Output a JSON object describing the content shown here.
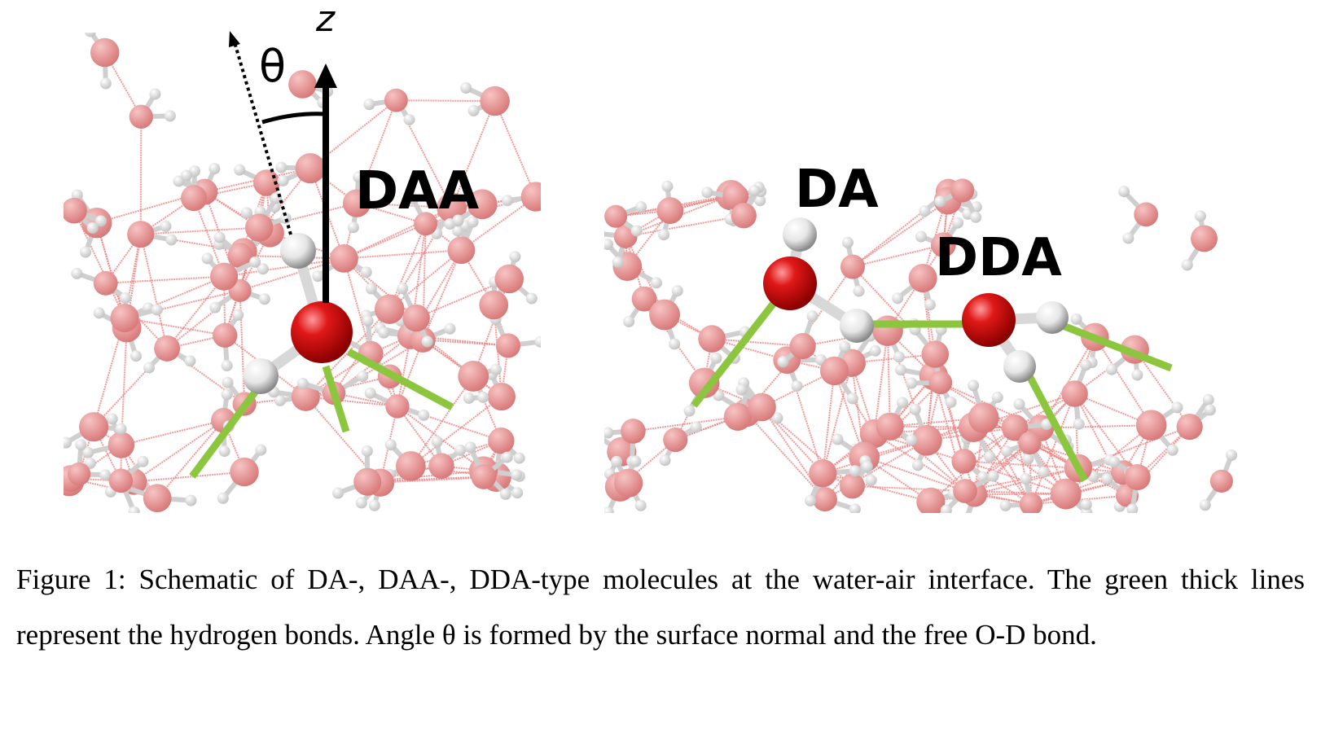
{
  "figure": {
    "axis_label": "z",
    "angle_label": "θ",
    "left_panel": {
      "label": "DAA"
    },
    "right_panel": {
      "label_da": "DA",
      "label_dda": "DDA"
    }
  },
  "caption": {
    "text": "Figure 1: Schematic of DA-, DAA-, DDA-type molecules at the water-air interface. The green thick lines represent the hydrogen bonds. Angle θ is formed by the surface normal and the free O-D bond."
  },
  "colors": {
    "oxygen": "#d91414",
    "hydrogen": "#e8e8e8",
    "hbond": "#8cc63f",
    "network_bond": "#f08080"
  }
}
